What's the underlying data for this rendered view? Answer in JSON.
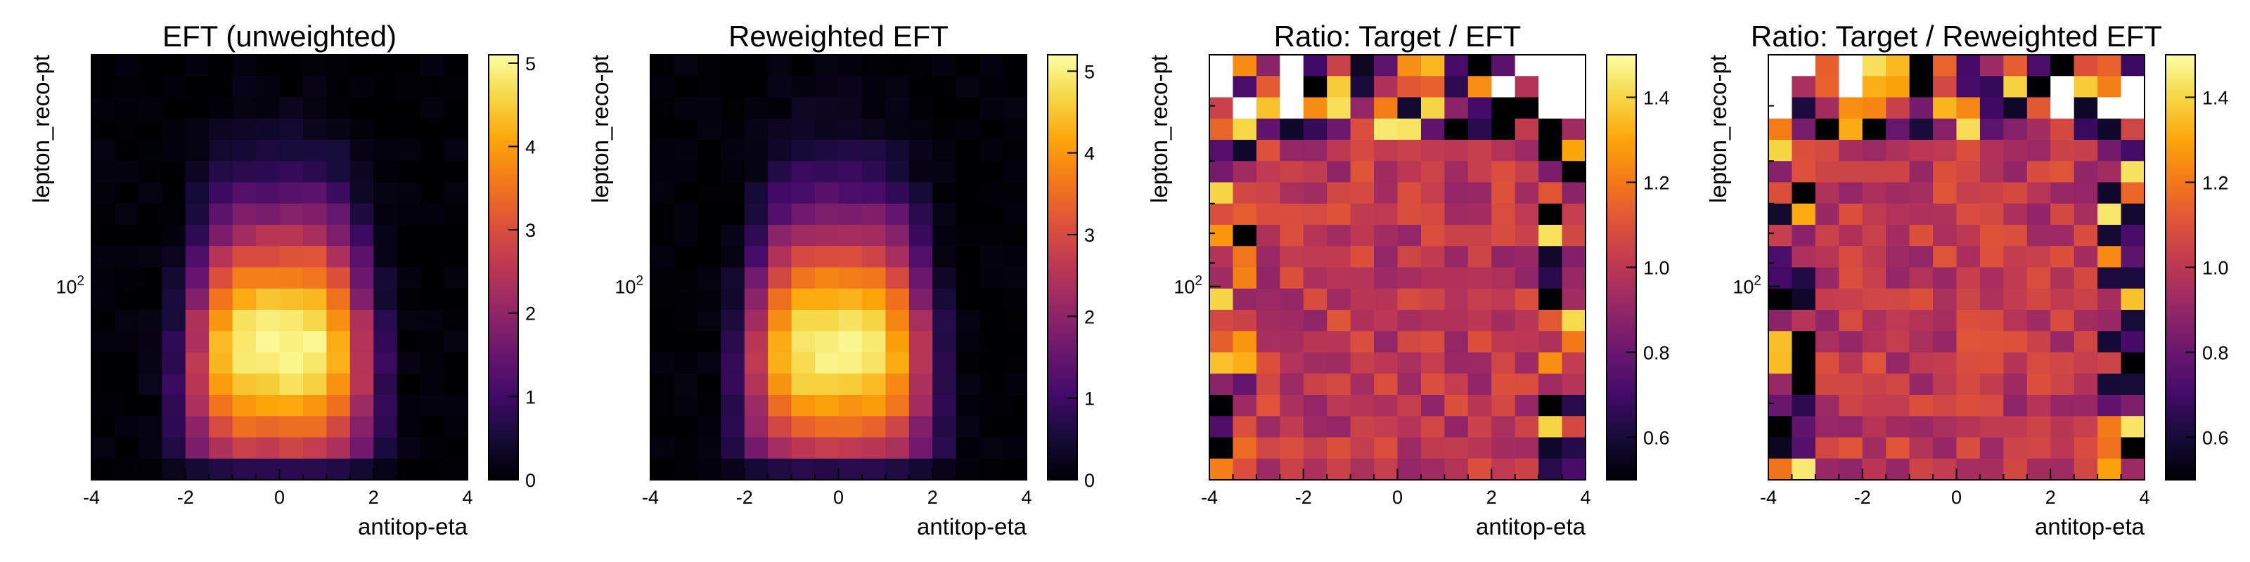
{
  "chart_data": [
    {
      "type": "heatmap",
      "title": "EFT (unweighted)",
      "xlabel": "antitop-eta",
      "ylabel": "lepton_reco-pt",
      "xlim": [
        -4,
        4
      ],
      "ylog": true,
      "y_tick_labels": [
        "10",
        "2"
      ],
      "x_ticks": [
        -4,
        -2,
        0,
        2,
        4
      ],
      "x_tick_labels": [
        "-4",
        "-2",
        "0",
        "2",
        "4"
      ],
      "colorbar": {
        "min": 0,
        "max": 5.1,
        "ticks": [
          0,
          1,
          2,
          3,
          4,
          5
        ],
        "tick_labels": [
          "0",
          "1",
          "2",
          "3",
          "4",
          "5"
        ],
        "colormap": "inferno"
      },
      "grid": {
        "nx": 16,
        "ny": 20
      },
      "description_of_values": "density peaks ~5 near eta=0 in lower-middle pt region, falling off toward high pt and |eta|>2"
    },
    {
      "type": "heatmap",
      "title": "Reweighted EFT",
      "xlabel": "antitop-eta",
      "ylabel": "lepton_reco-pt",
      "xlim": [
        -4,
        4
      ],
      "ylog": true,
      "y_tick_labels": [
        "10",
        "2"
      ],
      "x_ticks": [
        -4,
        -2,
        0,
        2,
        4
      ],
      "x_tick_labels": [
        "-4",
        "-2",
        "0",
        "2",
        "4"
      ],
      "colorbar": {
        "min": 0,
        "max": 5.2,
        "ticks": [
          0,
          1,
          2,
          3,
          4,
          5
        ],
        "tick_labels": [
          "0",
          "1",
          "2",
          "3",
          "4",
          "5"
        ],
        "colormap": "inferno"
      },
      "grid": {
        "nx": 16,
        "ny": 20
      }
    },
    {
      "type": "heatmap",
      "title": "Ratio: Target / EFT",
      "xlabel": "antitop-eta",
      "ylabel": "lepton_reco-pt",
      "xlim": [
        -4,
        4
      ],
      "ylog": true,
      "y_tick_labels": [
        "10",
        "2"
      ],
      "x_ticks": [
        -4,
        -2,
        0,
        2,
        4
      ],
      "x_tick_labels": [
        "-4",
        "-2",
        "0",
        "2",
        "4"
      ],
      "colorbar": {
        "min": 0.5,
        "max": 1.5,
        "ticks": [
          0.6,
          0.8,
          1.0,
          1.2,
          1.4
        ],
        "tick_labels": [
          "0.6",
          "0.8",
          "1.0",
          "1.2",
          "1.4"
        ],
        "colormap": "inferno"
      },
      "grid": {
        "nx": 16,
        "ny": 20
      }
    },
    {
      "type": "heatmap",
      "title": "Ratio: Target / Reweighted EFT",
      "xlabel": "antitop-eta",
      "ylabel": "lepton_reco-pt",
      "xlim": [
        -4,
        4
      ],
      "ylog": true,
      "y_tick_labels": [
        "10",
        "2"
      ],
      "x_ticks": [
        -4,
        -2,
        0,
        2,
        4
      ],
      "x_tick_labels": [
        "-4",
        "-2",
        "0",
        "2",
        "4"
      ],
      "colorbar": {
        "min": 0.5,
        "max": 1.5,
        "ticks": [
          0.6,
          0.8,
          1.0,
          1.2,
          1.4
        ],
        "tick_labels": [
          "0.6",
          "0.8",
          "1.0",
          "1.2",
          "1.4"
        ],
        "colormap": "inferno"
      },
      "grid": {
        "nx": 16,
        "ny": 20
      }
    }
  ]
}
